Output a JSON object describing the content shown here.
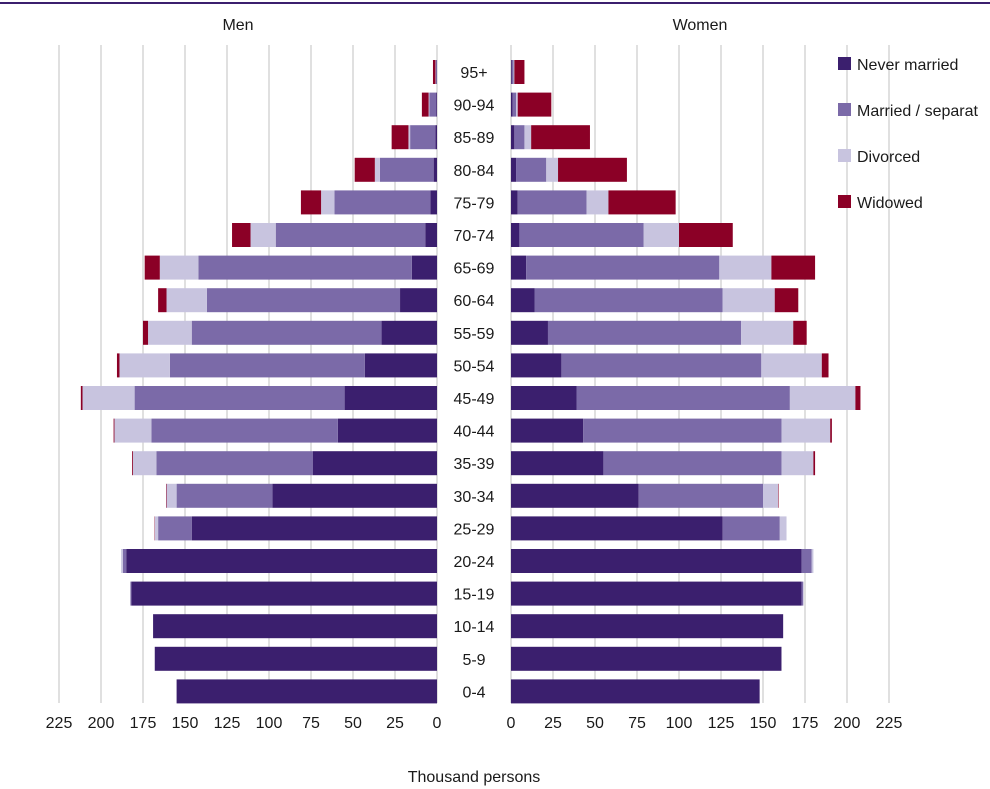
{
  "chart_data": {
    "type": "bar",
    "orientation": "horizontal",
    "layout": "population-pyramid",
    "panels": [
      "Men",
      "Women"
    ],
    "xlabel": "Thousand persons",
    "xlim": [
      0,
      225
    ],
    "xticks": [
      0,
      25,
      50,
      75,
      100,
      125,
      150,
      175,
      200,
      225
    ],
    "grid": true,
    "legend_position": "top-right",
    "categories": [
      "95+",
      "90-94",
      "85-89",
      "80-84",
      "75-79",
      "70-74",
      "65-69",
      "60-64",
      "55-59",
      "50-54",
      "45-49",
      "40-44",
      "35-39",
      "30-34",
      "25-29",
      "20-24",
      "15-19",
      "10-14",
      "5-9",
      "0-4"
    ],
    "series": [
      {
        "name": "Never married",
        "color": "#3b1f6e",
        "men": [
          0.2,
          0.5,
          1,
          2,
          4,
          7,
          15,
          22,
          33,
          43,
          55,
          59,
          74,
          98,
          146,
          185,
          182,
          169,
          168,
          155
        ],
        "women": [
          0.5,
          1,
          2,
          3,
          4,
          5,
          9,
          14,
          22,
          30,
          39,
          43,
          55,
          76,
          126,
          173,
          173,
          162,
          161,
          148
        ]
      },
      {
        "name": "Married / separat",
        "color": "#7b6aa8",
        "men": [
          0.5,
          4,
          15,
          32,
          57,
          89,
          127,
          115,
          113,
          116,
          125,
          111,
          93,
          57,
          20,
          2,
          0.5,
          0,
          0,
          0
        ],
        "women": [
          1,
          2,
          6,
          18,
          41,
          74,
          115,
          112,
          115,
          119,
          127,
          118,
          106,
          74,
          34,
          6,
          1,
          0,
          0,
          0
        ]
      },
      {
        "name": "Divorced",
        "color": "#c8c4df",
        "men": [
          0.2,
          0.5,
          1,
          3,
          8,
          15,
          23,
          24,
          26,
          30,
          31,
          22,
          14,
          6,
          2,
          1,
          0,
          0,
          0,
          0
        ],
        "women": [
          0.5,
          1,
          4,
          7,
          13,
          21,
          31,
          31,
          31,
          36,
          39,
          29,
          19,
          9,
          4,
          1,
          0,
          0,
          0,
          0
        ]
      },
      {
        "name": "Widowed",
        "color": "#8b0026",
        "men": [
          1.5,
          4,
          10,
          12,
          12,
          11,
          9,
          5,
          3,
          1.5,
          1,
          0.5,
          0.5,
          0.3,
          0.2,
          0,
          0,
          0,
          0,
          0
        ],
        "women": [
          6,
          20,
          35,
          41,
          40,
          32,
          26,
          14,
          8,
          4,
          3,
          1,
          1,
          0.3,
          0,
          0,
          0,
          0,
          0,
          0
        ]
      }
    ]
  }
}
